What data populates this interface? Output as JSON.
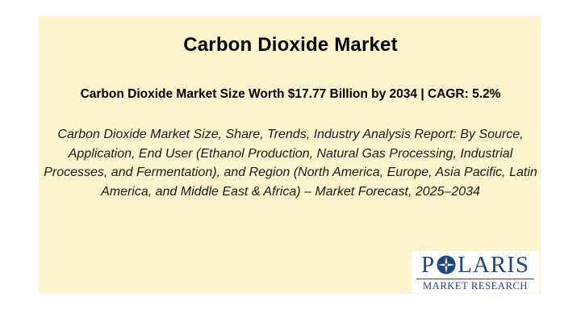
{
  "slide": {
    "title": "Carbon Dioxide Market",
    "headline": "Carbon Dioxide Market Size Worth $17.77 Billion by 2034 | CAGR: 5.2%",
    "description": "Carbon Dioxide Market Size, Share, Trends, Industry Analysis Report: By Source, Application, End User (Ethanol Production, Natural Gas Processing, Industrial Processes, and Fermentation), and Region (North America, Europe, Asia Pacific, Latin America, and Middle East & Africa) – Market Forecast, 2025–2034"
  },
  "logo": {
    "letter_p": "P",
    "letters_rest": "LARIS",
    "subtitle": "MARKET RESEARCH",
    "icon": "compass-star-icon",
    "color": "#21457e"
  },
  "colors": {
    "panel_background": "#fdf3cd",
    "slide_background": "#ffffff",
    "text": "#000000"
  }
}
